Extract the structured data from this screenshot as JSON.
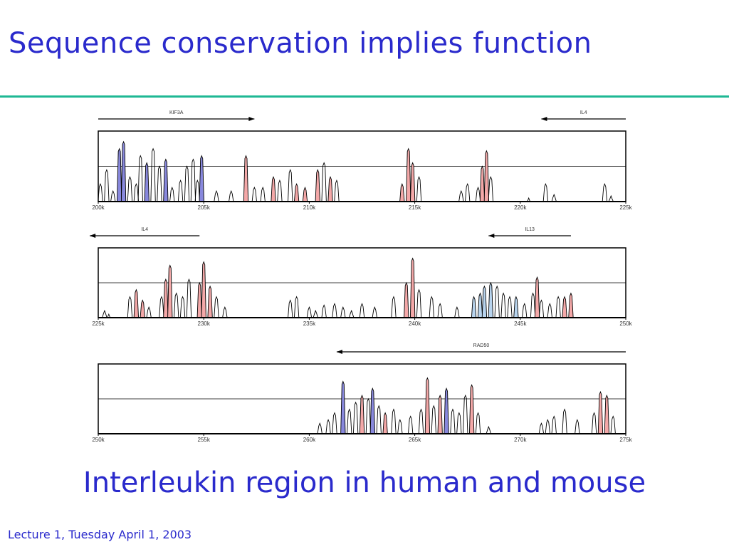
{
  "slide": {
    "title": "Sequence conservation implies function",
    "subtitle": "Interleukin region in human and mouse",
    "footer": "Lecture 1, Tuesday April 1, 2003"
  },
  "colors": {
    "text": "#2a2acc",
    "rule": "#1fb894",
    "exon": "#8888dd",
    "conserved": "#f4a8a8",
    "utr": "#b8d4ee",
    "trace": "#000000"
  },
  "chart_data": [
    {
      "type": "area",
      "xlim": [
        200,
        225
      ],
      "xunit": "k",
      "ticks": [
        "200k",
        "205k",
        "210k",
        "215k",
        "220k",
        "225k"
      ],
      "genes": [
        {
          "name": "KIF3A",
          "from": 200,
          "to": 207.4,
          "direction": "right"
        },
        {
          "name": "IL4",
          "from": 221,
          "to": 225,
          "direction": "left"
        }
      ],
      "peaks": [
        {
          "x": 200.1,
          "h": 0.25
        },
        {
          "x": 200.4,
          "h": 0.45
        },
        {
          "x": 200.7,
          "h": 0.15
        },
        {
          "x": 201.0,
          "h": 0.75,
          "fill": "exon"
        },
        {
          "x": 201.2,
          "h": 0.85,
          "fill": "exon"
        },
        {
          "x": 201.5,
          "h": 0.35
        },
        {
          "x": 201.8,
          "h": 0.25
        },
        {
          "x": 202.0,
          "h": 0.65
        },
        {
          "x": 202.3,
          "h": 0.55,
          "fill": "exon"
        },
        {
          "x": 202.6,
          "h": 0.75
        },
        {
          "x": 202.9,
          "h": 0.5
        },
        {
          "x": 203.2,
          "h": 0.6,
          "fill": "exon"
        },
        {
          "x": 203.5,
          "h": 0.2
        },
        {
          "x": 203.9,
          "h": 0.3
        },
        {
          "x": 204.2,
          "h": 0.5
        },
        {
          "x": 204.5,
          "h": 0.6
        },
        {
          "x": 204.7,
          "h": 0.3
        },
        {
          "x": 204.9,
          "h": 0.65,
          "fill": "exon"
        },
        {
          "x": 205.6,
          "h": 0.15
        },
        {
          "x": 206.3,
          "h": 0.15
        },
        {
          "x": 207.0,
          "h": 0.65,
          "fill": "conserved"
        },
        {
          "x": 207.4,
          "h": 0.2
        },
        {
          "x": 207.8,
          "h": 0.2
        },
        {
          "x": 208.3,
          "h": 0.35,
          "fill": "conserved"
        },
        {
          "x": 208.6,
          "h": 0.3
        },
        {
          "x": 209.1,
          "h": 0.45
        },
        {
          "x": 209.4,
          "h": 0.25,
          "fill": "conserved"
        },
        {
          "x": 209.8,
          "h": 0.2,
          "fill": "conserved"
        },
        {
          "x": 210.4,
          "h": 0.45,
          "fill": "conserved"
        },
        {
          "x": 210.7,
          "h": 0.55
        },
        {
          "x": 211.0,
          "h": 0.35,
          "fill": "conserved"
        },
        {
          "x": 211.3,
          "h": 0.3
        },
        {
          "x": 214.4,
          "h": 0.25,
          "fill": "conserved"
        },
        {
          "x": 214.7,
          "h": 0.75,
          "fill": "conserved"
        },
        {
          "x": 214.9,
          "h": 0.55,
          "fill": "conserved"
        },
        {
          "x": 215.2,
          "h": 0.35
        },
        {
          "x": 217.2,
          "h": 0.15
        },
        {
          "x": 217.5,
          "h": 0.25
        },
        {
          "x": 218.0,
          "h": 0.2
        },
        {
          "x": 218.2,
          "h": 0.5,
          "fill": "conserved"
        },
        {
          "x": 218.4,
          "h": 0.72,
          "fill": "conserved"
        },
        {
          "x": 218.6,
          "h": 0.35
        },
        {
          "x": 220.4,
          "h": 0.05
        },
        {
          "x": 221.2,
          "h": 0.25
        },
        {
          "x": 221.6,
          "h": 0.1
        },
        {
          "x": 224.0,
          "h": 0.25
        },
        {
          "x": 224.3,
          "h": 0.08
        }
      ]
    },
    {
      "type": "area",
      "xlim": [
        225,
        250
      ],
      "xunit": "k",
      "ticks": [
        "225k",
        "230k",
        "235k",
        "240k",
        "245k",
        "250k"
      ],
      "genes": [
        {
          "name": "IL4",
          "from": 224.6,
          "to": 229.8,
          "direction": "left"
        },
        {
          "name": "IL13",
          "from": 243.5,
          "to": 247.4,
          "direction": "left"
        }
      ],
      "peaks": [
        {
          "x": 225.3,
          "h": 0.1
        },
        {
          "x": 225.5,
          "h": 0.05
        },
        {
          "x": 226.5,
          "h": 0.3
        },
        {
          "x": 226.8,
          "h": 0.4,
          "fill": "conserved"
        },
        {
          "x": 227.1,
          "h": 0.25,
          "fill": "conserved"
        },
        {
          "x": 227.4,
          "h": 0.15
        },
        {
          "x": 228.0,
          "h": 0.3
        },
        {
          "x": 228.2,
          "h": 0.55,
          "fill": "conserved"
        },
        {
          "x": 228.4,
          "h": 0.75,
          "fill": "conserved"
        },
        {
          "x": 228.7,
          "h": 0.35
        },
        {
          "x": 229.0,
          "h": 0.3
        },
        {
          "x": 229.3,
          "h": 0.55
        },
        {
          "x": 229.8,
          "h": 0.5,
          "fill": "conserved"
        },
        {
          "x": 230.0,
          "h": 0.8,
          "fill": "conserved"
        },
        {
          "x": 230.3,
          "h": 0.45,
          "fill": "conserved"
        },
        {
          "x": 230.6,
          "h": 0.3
        },
        {
          "x": 231.0,
          "h": 0.15
        },
        {
          "x": 234.1,
          "h": 0.25
        },
        {
          "x": 234.4,
          "h": 0.3
        },
        {
          "x": 235.0,
          "h": 0.15
        },
        {
          "x": 235.3,
          "h": 0.1
        },
        {
          "x": 235.7,
          "h": 0.18
        },
        {
          "x": 236.2,
          "h": 0.2
        },
        {
          "x": 236.6,
          "h": 0.15
        },
        {
          "x": 237.0,
          "h": 0.1
        },
        {
          "x": 237.5,
          "h": 0.2
        },
        {
          "x": 238.1,
          "h": 0.15
        },
        {
          "x": 239.0,
          "h": 0.3
        },
        {
          "x": 239.6,
          "h": 0.5,
          "fill": "conserved"
        },
        {
          "x": 239.9,
          "h": 0.85,
          "fill": "conserved"
        },
        {
          "x": 240.2,
          "h": 0.4
        },
        {
          "x": 240.8,
          "h": 0.3
        },
        {
          "x": 241.2,
          "h": 0.2
        },
        {
          "x": 242.0,
          "h": 0.15
        },
        {
          "x": 242.8,
          "h": 0.3,
          "fill": "utr"
        },
        {
          "x": 243.1,
          "h": 0.35,
          "fill": "utr"
        },
        {
          "x": 243.3,
          "h": 0.45,
          "fill": "utr"
        },
        {
          "x": 243.6,
          "h": 0.5,
          "fill": "utr"
        },
        {
          "x": 243.9,
          "h": 0.45
        },
        {
          "x": 244.2,
          "h": 0.35
        },
        {
          "x": 244.5,
          "h": 0.3
        },
        {
          "x": 244.8,
          "h": 0.3,
          "fill": "utr"
        },
        {
          "x": 245.2,
          "h": 0.2
        },
        {
          "x": 245.6,
          "h": 0.35
        },
        {
          "x": 245.8,
          "h": 0.58,
          "fill": "conserved"
        },
        {
          "x": 246.0,
          "h": 0.25
        },
        {
          "x": 246.4,
          "h": 0.2
        },
        {
          "x": 246.8,
          "h": 0.3
        },
        {
          "x": 247.1,
          "h": 0.3,
          "fill": "conserved"
        },
        {
          "x": 247.4,
          "h": 0.35,
          "fill": "conserved"
        }
      ]
    },
    {
      "type": "area",
      "xlim": [
        250,
        275
      ],
      "xunit": "k",
      "ticks": [
        "250k",
        "255k",
        "260k",
        "265k",
        "270k",
        "275k"
      ],
      "genes": [
        {
          "name": "RAD50",
          "from": 261.3,
          "to": 275,
          "direction": "left"
        }
      ],
      "peaks": [
        {
          "x": 260.5,
          "h": 0.15
        },
        {
          "x": 260.9,
          "h": 0.2
        },
        {
          "x": 261.2,
          "h": 0.3
        },
        {
          "x": 261.6,
          "h": 0.75,
          "fill": "exon"
        },
        {
          "x": 261.9,
          "h": 0.35
        },
        {
          "x": 262.2,
          "h": 0.45
        },
        {
          "x": 262.5,
          "h": 0.55,
          "fill": "conserved"
        },
        {
          "x": 262.8,
          "h": 0.5
        },
        {
          "x": 263.0,
          "h": 0.65,
          "fill": "exon"
        },
        {
          "x": 263.3,
          "h": 0.4
        },
        {
          "x": 263.6,
          "h": 0.3,
          "fill": "conserved"
        },
        {
          "x": 264.0,
          "h": 0.35
        },
        {
          "x": 264.3,
          "h": 0.2
        },
        {
          "x": 264.8,
          "h": 0.25
        },
        {
          "x": 265.3,
          "h": 0.35
        },
        {
          "x": 265.6,
          "h": 0.8,
          "fill": "conserved"
        },
        {
          "x": 265.9,
          "h": 0.4
        },
        {
          "x": 266.2,
          "h": 0.55,
          "fill": "conserved"
        },
        {
          "x": 266.5,
          "h": 0.65,
          "fill": "exon"
        },
        {
          "x": 266.8,
          "h": 0.35
        },
        {
          "x": 267.1,
          "h": 0.3
        },
        {
          "x": 267.4,
          "h": 0.55
        },
        {
          "x": 267.7,
          "h": 0.7,
          "fill": "conserved"
        },
        {
          "x": 268.0,
          "h": 0.3
        },
        {
          "x": 268.5,
          "h": 0.1
        },
        {
          "x": 271.0,
          "h": 0.15
        },
        {
          "x": 271.3,
          "h": 0.2
        },
        {
          "x": 271.6,
          "h": 0.25
        },
        {
          "x": 272.1,
          "h": 0.35
        },
        {
          "x": 272.7,
          "h": 0.2
        },
        {
          "x": 273.5,
          "h": 0.3
        },
        {
          "x": 273.8,
          "h": 0.6,
          "fill": "conserved"
        },
        {
          "x": 274.1,
          "h": 0.55,
          "fill": "conserved"
        },
        {
          "x": 274.4,
          "h": 0.25
        }
      ]
    }
  ]
}
